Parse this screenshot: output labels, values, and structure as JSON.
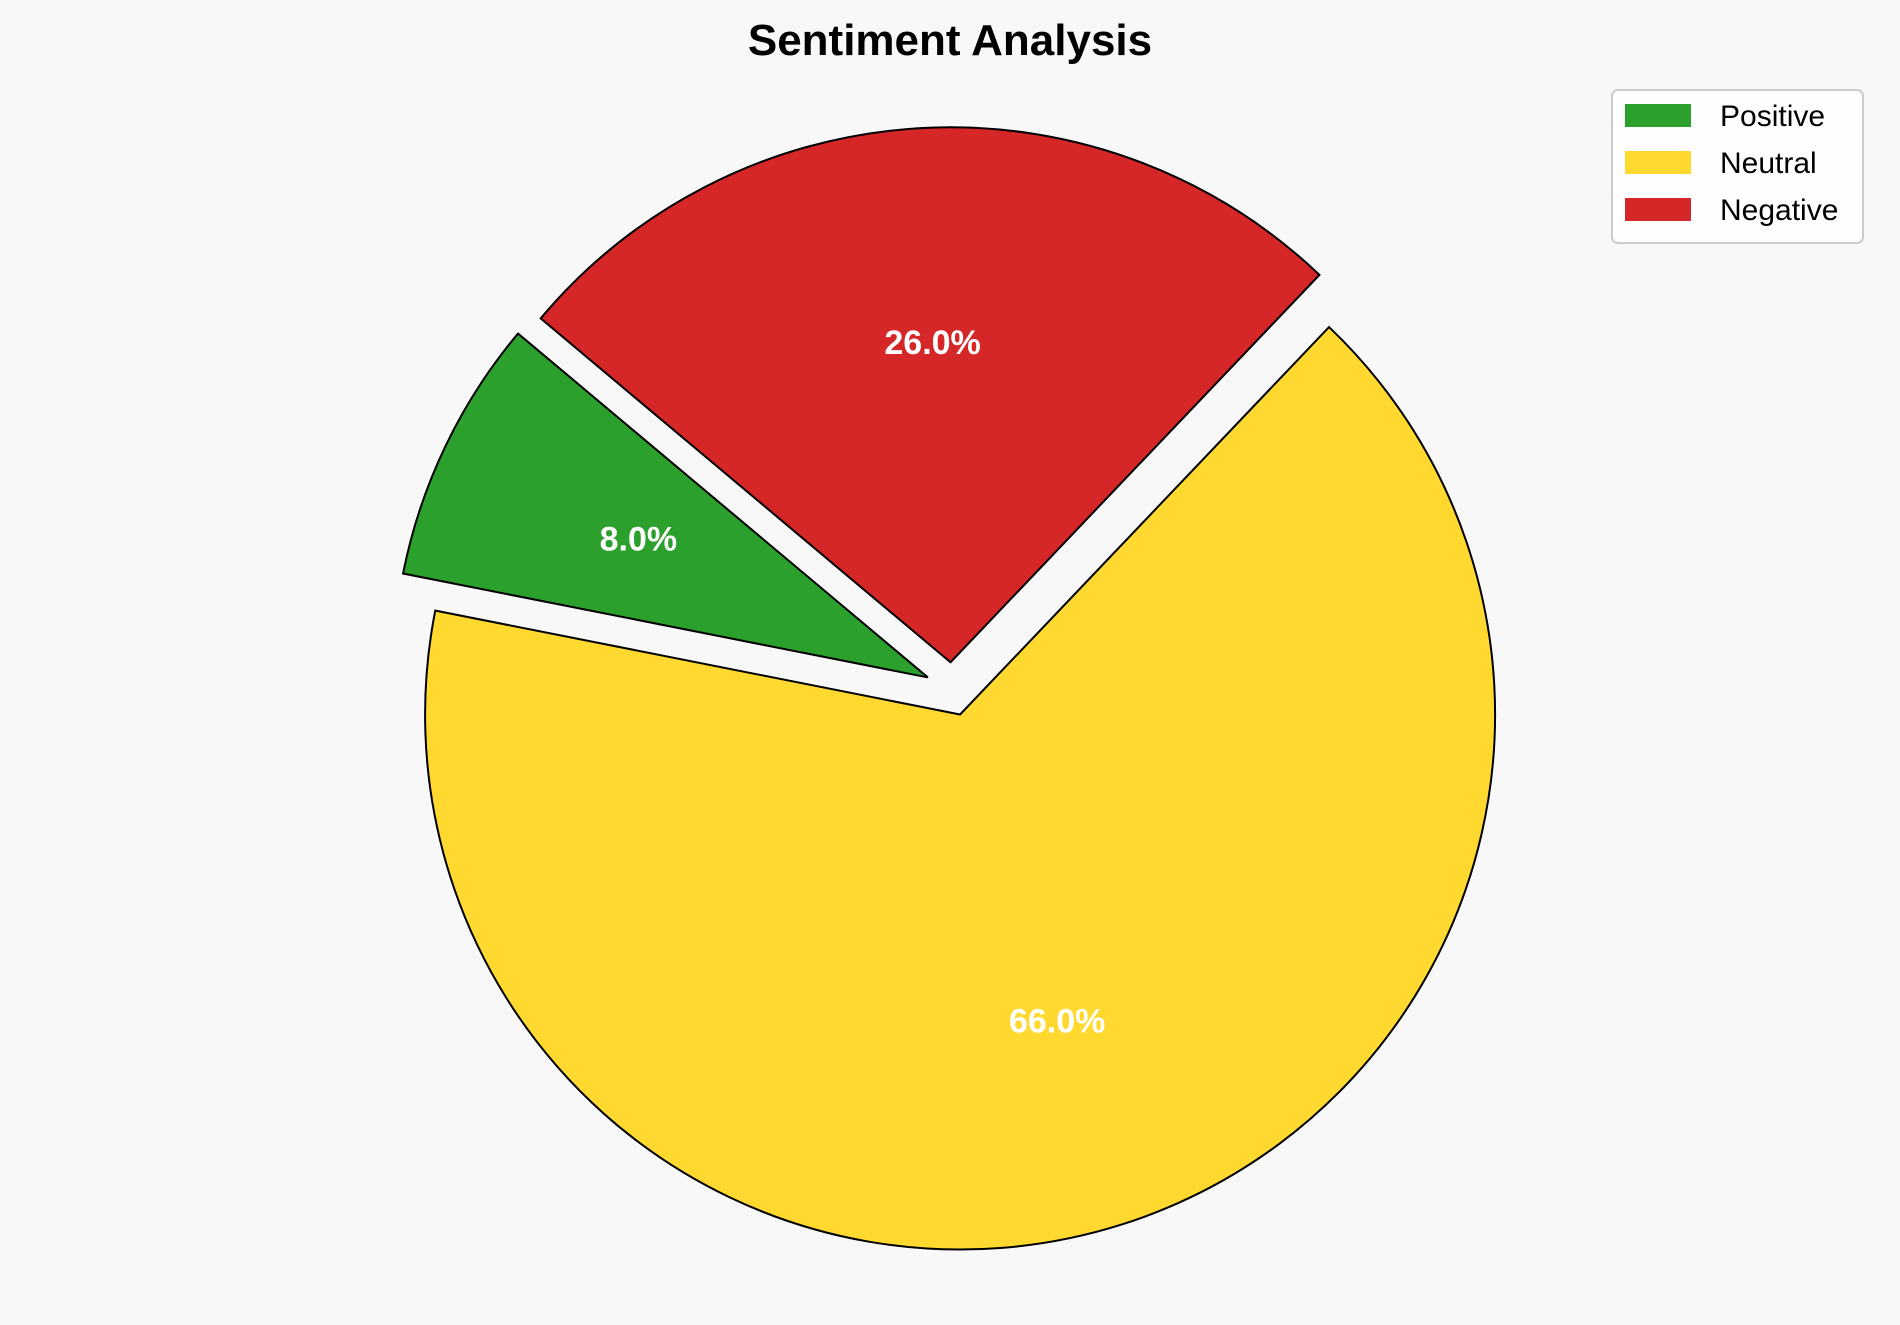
{
  "chart_data": {
    "type": "pie",
    "title": "Sentiment Analysis",
    "categories": [
      "Positive",
      "Neutral",
      "Negative"
    ],
    "values": [
      8.0,
      66.0,
      26.0
    ],
    "labels": [
      "8.0%",
      "66.0%",
      "26.0%"
    ],
    "colors": [
      "#2ca02c",
      "#ffd92f",
      "#d62728"
    ],
    "start_angle_deg": 140,
    "direction": "counterclockwise",
    "explode": [
      0.05,
      0.05,
      0.05
    ],
    "legend_placement": "top-right",
    "edge_color": "#000000"
  }
}
